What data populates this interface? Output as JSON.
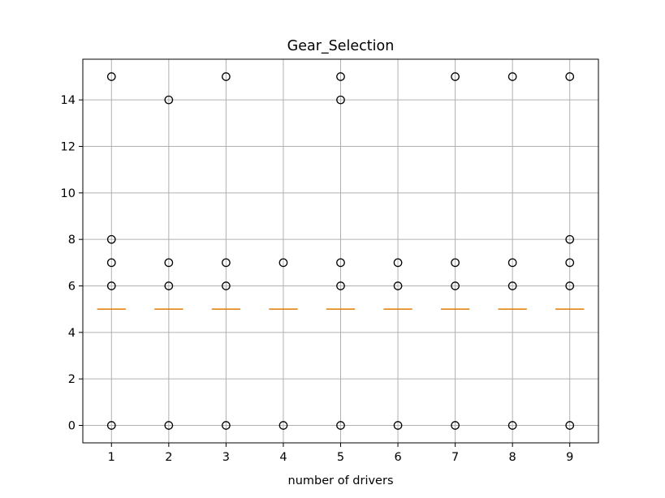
{
  "chart_data": {
    "type": "box",
    "title": "Gear_Selection",
    "xlabel": "number of drivers",
    "ylabel": "",
    "categories": [
      "1",
      "2",
      "3",
      "4",
      "5",
      "6",
      "7",
      "8",
      "9"
    ],
    "ylim": [
      -0.75,
      15.75
    ],
    "yticks": [
      0,
      2,
      4,
      6,
      8,
      10,
      12,
      14
    ],
    "grid": true,
    "boxes": [
      {
        "category": "1",
        "median": 5,
        "q1": 5,
        "q3": 5,
        "whisker_low": 5,
        "whisker_high": 5,
        "fliers": [
          0,
          6,
          7,
          8,
          15
        ]
      },
      {
        "category": "2",
        "median": 5,
        "q1": 5,
        "q3": 5,
        "whisker_low": 5,
        "whisker_high": 5,
        "fliers": [
          0,
          6,
          7,
          14
        ]
      },
      {
        "category": "3",
        "median": 5,
        "q1": 5,
        "q3": 5,
        "whisker_low": 5,
        "whisker_high": 5,
        "fliers": [
          0,
          6,
          7,
          15
        ]
      },
      {
        "category": "4",
        "median": 5,
        "q1": 5,
        "q3": 5,
        "whisker_low": 5,
        "whisker_high": 5,
        "fliers": [
          0,
          7
        ]
      },
      {
        "category": "5",
        "median": 5,
        "q1": 5,
        "q3": 5,
        "whisker_low": 5,
        "whisker_high": 5,
        "fliers": [
          0,
          6,
          7,
          14,
          15
        ]
      },
      {
        "category": "6",
        "median": 5,
        "q1": 5,
        "q3": 5,
        "whisker_low": 5,
        "whisker_high": 5,
        "fliers": [
          0,
          6,
          7
        ]
      },
      {
        "category": "7",
        "median": 5,
        "q1": 5,
        "q3": 5,
        "whisker_low": 5,
        "whisker_high": 5,
        "fliers": [
          0,
          6,
          7,
          15
        ]
      },
      {
        "category": "8",
        "median": 5,
        "q1": 5,
        "q3": 5,
        "whisker_low": 5,
        "whisker_high": 5,
        "fliers": [
          0,
          6,
          7,
          15
        ]
      },
      {
        "category": "9",
        "median": 5,
        "q1": 5,
        "q3": 5,
        "whisker_low": 5,
        "whisker_high": 5,
        "fliers": [
          0,
          6,
          7,
          8,
          15
        ]
      }
    ],
    "colors": {
      "median": "#e07b00",
      "flier_edge": "#000000",
      "grid": "#b0b0b0",
      "axes": "#000000"
    }
  }
}
